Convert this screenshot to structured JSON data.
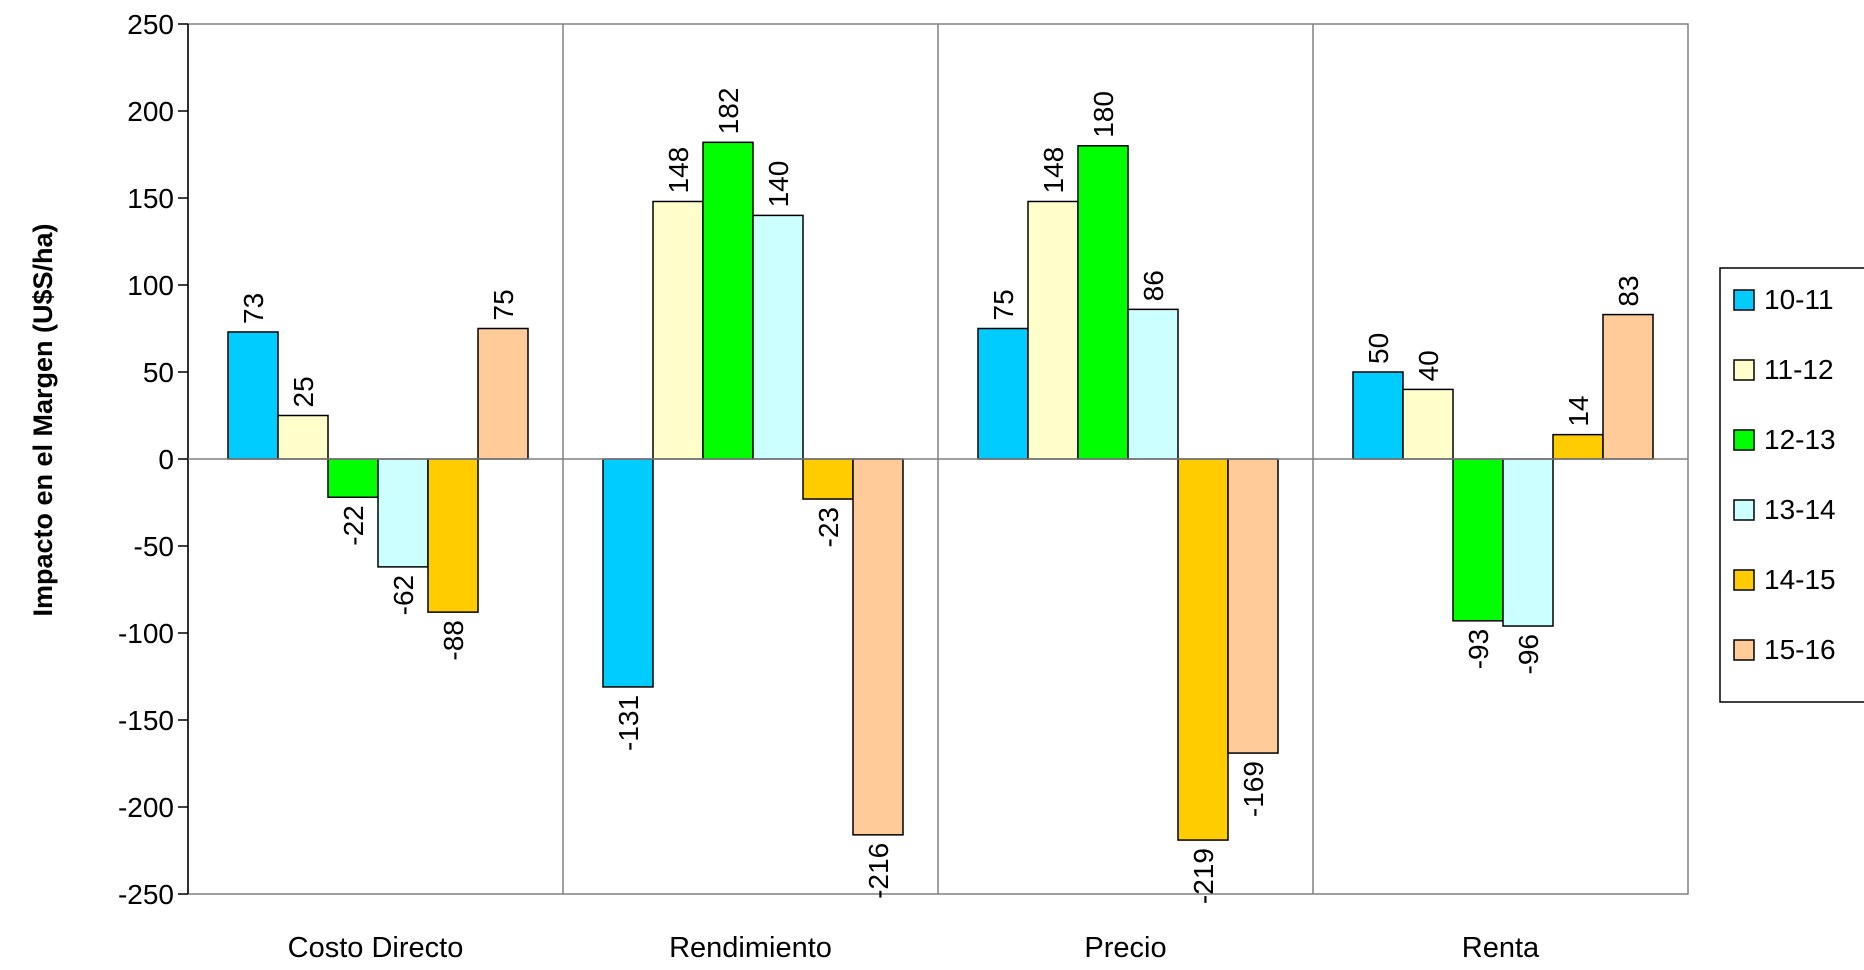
{
  "chart_data": {
    "type": "bar",
    "title": "",
    "xlabel": "",
    "ylabel": "Impacto en el Margen (U$S/ha)",
    "ylim": [
      -250,
      250
    ],
    "yticks": [
      250,
      200,
      150,
      100,
      50,
      0,
      -50,
      -100,
      -150,
      -200,
      -250
    ],
    "categories": [
      "Costo Directo",
      "Rendimiento",
      "Precio",
      "Renta"
    ],
    "series": [
      {
        "name": "10-11",
        "color": "#00CCFF",
        "values": [
          73,
          -131,
          75,
          50
        ]
      },
      {
        "name": "11-12",
        "color": "#FFFFCC",
        "values": [
          25,
          148,
          148,
          40
        ]
      },
      {
        "name": "12-13",
        "color": "#00FF00",
        "values": [
          -22,
          182,
          180,
          -93
        ]
      },
      {
        "name": "13-14",
        "color": "#CCFFFF",
        "values": [
          -62,
          140,
          86,
          -96
        ]
      },
      {
        "name": "14-15",
        "color": "#FFCC00",
        "values": [
          -88,
          -23,
          -219,
          14
        ]
      },
      {
        "name": "15-16",
        "color": "#FFCC99",
        "values": [
          75,
          -216,
          -169,
          83
        ]
      }
    ],
    "grid": false,
    "category_separators": true,
    "legend_position": "right"
  }
}
